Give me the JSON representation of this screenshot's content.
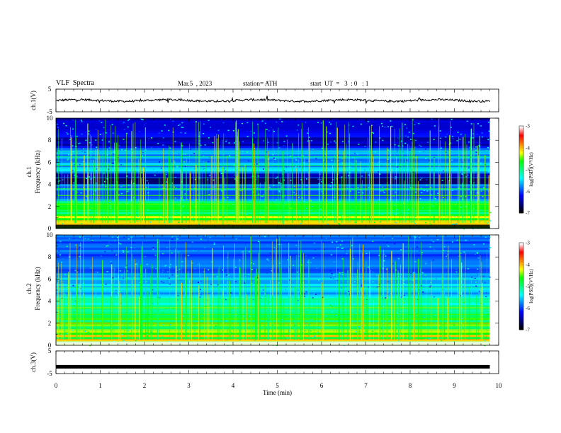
{
  "header": {
    "title": "VLF  Spectra",
    "date": "Mar.5  , 2023",
    "station": "station= ATH",
    "start_ut": "start  UT  =   3  : 0   : 1"
  },
  "chart_data": [
    {
      "type": "line",
      "name": "ch1-waveform",
      "ylabel": "ch.1(V)",
      "yticks": [
        "5",
        "-5"
      ],
      "ylim": [
        -5,
        5
      ],
      "xlim": [
        0,
        10
      ],
      "x_extent": [
        0,
        9.8
      ],
      "baseline": 0,
      "color": "#000000"
    },
    {
      "type": "heatmap",
      "name": "ch1-spectrogram",
      "ylabel_top": "ch.1",
      "ylabel": "Frequency  (kHz)",
      "ylim": [
        0,
        10
      ],
      "yticks": [
        "0",
        "2",
        "4",
        "6",
        "8",
        "10"
      ],
      "xlim": [
        0,
        10
      ],
      "x_extent": [
        0,
        9.8
      ],
      "colorbar": {
        "label": "log(PSD)(V²/Hz)",
        "ticks": [
          "-3",
          "-4",
          "-5",
          "-6",
          "-7"
        ],
        "range": [
          -7,
          -3
        ]
      }
    },
    {
      "type": "heatmap",
      "name": "ch2-spectrogram",
      "ylabel_top": "ch.2",
      "ylabel": "Frequency  (kHz)",
      "ylim": [
        0,
        10
      ],
      "yticks": [
        "0",
        "2",
        "4",
        "6",
        "8",
        "10"
      ],
      "xlim": [
        0,
        10
      ],
      "x_extent": [
        0,
        9.8
      ],
      "colorbar": {
        "label": "log(PSD)(V²/Hz)",
        "ticks": [
          "-3",
          "-4",
          "-5",
          "-6",
          "-7"
        ],
        "range": [
          -7,
          -3
        ]
      }
    },
    {
      "type": "line",
      "name": "ch3-waveform",
      "ylabel": "ch.3(V)",
      "yticks": [
        "5",
        "-5"
      ],
      "ylim": [
        -5,
        5
      ],
      "xlim": [
        0,
        10
      ],
      "x_extent": [
        0,
        9.8
      ],
      "baseline": -2,
      "color": "#000000"
    }
  ],
  "xaxis": {
    "label": "Time  (min)",
    "ticks": [
      "0",
      "1",
      "2",
      "3",
      "4",
      "5",
      "6",
      "7",
      "8",
      "9",
      "10"
    ]
  },
  "colormap": [
    "#000000",
    "#00007f",
    "#0000ff",
    "#0080ff",
    "#00ffff",
    "#00ff80",
    "#00ff00",
    "#ffff00",
    "#ff8000",
    "#ff0000",
    "#ffffff"
  ]
}
